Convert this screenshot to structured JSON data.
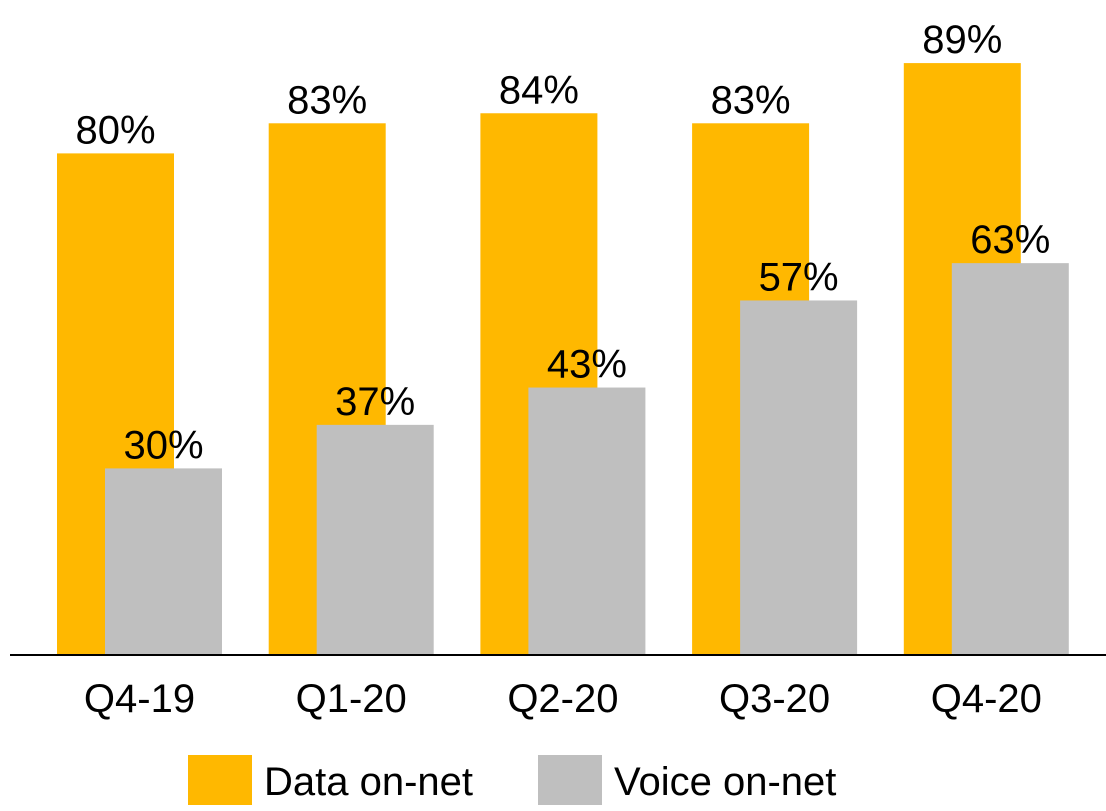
{
  "chart_data": {
    "type": "bar",
    "categories": [
      "Q4-19",
      "Q1-20",
      "Q2-20",
      "Q3-20",
      "Q4-20"
    ],
    "series": [
      {
        "name": "Data on-net",
        "color": "#FFB800",
        "axis": "y2",
        "values": [
          80,
          83,
          84,
          83,
          89
        ],
        "value_labels": [
          "80%",
          "83%",
          "84%",
          "83%",
          "89%"
        ]
      },
      {
        "name": "Voice on-net",
        "color": "#BFBFBF",
        "values": [
          30,
          37,
          43,
          57,
          63
        ],
        "value_labels": [
          "30%",
          "37%",
          "43%",
          "57%",
          "63%"
        ]
      }
    ],
    "ylim": [
      0,
      100
    ],
    "y2lim": [
      30,
      92
    ],
    "legend": "bottom"
  }
}
